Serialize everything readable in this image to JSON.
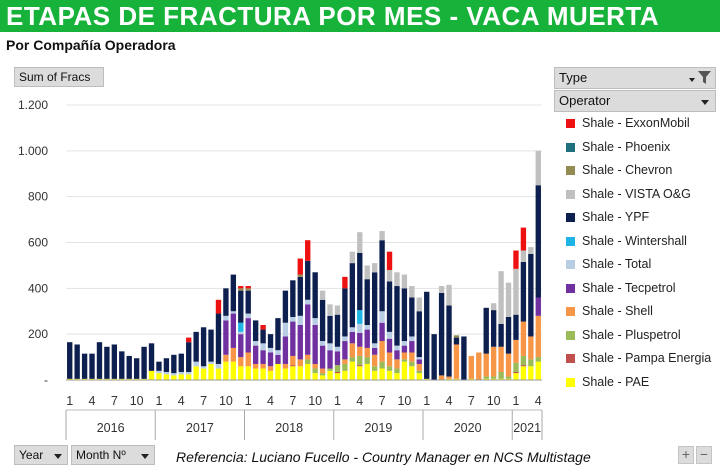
{
  "title": "ETAPAS DE FRACTURA POR MES -  VACA MUERTA",
  "subtitle": "Por Compañía Operadora",
  "value_field": "Sum of Fracs",
  "filter_field": "Type",
  "legend_field": "Operator",
  "row_fields": [
    "Year",
    "Month Nº"
  ],
  "reference": "Referencia: Luciano Fucello - Country Manager en NCS Multistage",
  "zoom_buttons": [
    "+",
    "−"
  ],
  "icons": [
    "filter-icon",
    "dropdown-arrow-icon"
  ],
  "chart_data": {
    "type": "bar",
    "stacked": true,
    "ylim": [
      0,
      1200
    ],
    "y_ticks": [
      "-",
      "200",
      "400",
      "600",
      "800",
      "1.000",
      "1.200"
    ],
    "y_tick_values": [
      0,
      200,
      400,
      600,
      800,
      1000,
      1200
    ],
    "x_month_labels": [
      "1",
      "4",
      "7",
      "10",
      "1",
      "4",
      "7",
      "10",
      "1",
      "4",
      "7",
      "10",
      "1",
      "4",
      "7",
      "10",
      "1",
      "4",
      "7",
      "10",
      "1",
      "4"
    ],
    "years": [
      {
        "label": "2016",
        "months": 12
      },
      {
        "label": "2017",
        "months": 12
      },
      {
        "label": "2018",
        "months": 12
      },
      {
        "label": "2019",
        "months": 12
      },
      {
        "label": "2020",
        "months": 12
      },
      {
        "label": "2021",
        "months": 4
      }
    ],
    "series": [
      {
        "name": "Shale - PAE",
        "color": "#ffff00",
        "values": [
          5,
          5,
          5,
          5,
          5,
          5,
          5,
          5,
          5,
          5,
          5,
          40,
          30,
          25,
          20,
          25,
          25,
          60,
          50,
          70,
          50,
          80,
          80,
          60,
          60,
          50,
          50,
          40,
          70,
          50,
          60,
          60,
          70,
          30,
          20,
          40,
          30,
          40,
          80,
          60,
          70,
          40,
          50,
          40,
          30,
          80,
          60,
          30,
          5,
          0,
          0,
          5,
          5,
          0,
          5,
          0,
          5,
          5,
          5,
          5,
          30,
          60,
          60,
          80
        ]
      },
      {
        "name": "Shale - Pampa Energia",
        "color": "#c0504d",
        "values": [
          0,
          0,
          0,
          0,
          0,
          0,
          0,
          0,
          0,
          0,
          0,
          0,
          0,
          0,
          0,
          0,
          0,
          0,
          0,
          0,
          0,
          0,
          0,
          0,
          0,
          0,
          0,
          0,
          0,
          0,
          5,
          0,
          0,
          0,
          0,
          0,
          5,
          0,
          0,
          5,
          0,
          0,
          0,
          0,
          0,
          0,
          0,
          0,
          0,
          0,
          0,
          0,
          0,
          0,
          0,
          0,
          0,
          0,
          0,
          0,
          5,
          5,
          0,
          0
        ]
      },
      {
        "name": "Shale - Pluspetrol",
        "color": "#9bbb59",
        "values": [
          0,
          0,
          0,
          0,
          0,
          0,
          0,
          0,
          0,
          0,
          0,
          0,
          0,
          0,
          0,
          0,
          0,
          0,
          0,
          0,
          0,
          0,
          0,
          0,
          0,
          0,
          0,
          0,
          0,
          0,
          0,
          0,
          20,
          20,
          10,
          10,
          30,
          30,
          20,
          40,
          30,
          20,
          30,
          20,
          20,
          10,
          20,
          10,
          0,
          0,
          0,
          0,
          0,
          0,
          0,
          0,
          10,
          10,
          30,
          10,
          40,
          40,
          30,
          20
        ]
      },
      {
        "name": "Shale - Shell",
        "color": "#f79646",
        "values": [
          0,
          0,
          0,
          0,
          0,
          0,
          0,
          0,
          0,
          0,
          0,
          0,
          0,
          0,
          0,
          0,
          0,
          0,
          0,
          0,
          0,
          30,
          60,
          40,
          60,
          20,
          20,
          20,
          0,
          20,
          40,
          30,
          20,
          20,
          20,
          0,
          0,
          20,
          60,
          40,
          40,
          50,
          90,
          60,
          40,
          30,
          40,
          30,
          0,
          0,
          20,
          10,
          150,
          0,
          100,
          120,
          100,
          130,
          110,
          100,
          100,
          150,
          100,
          180
        ]
      },
      {
        "name": "Shale - Tecpetrol",
        "color": "#7030a0",
        "values": [
          0,
          0,
          0,
          0,
          0,
          0,
          0,
          0,
          0,
          0,
          0,
          0,
          0,
          0,
          0,
          0,
          0,
          0,
          0,
          0,
          0,
          150,
          150,
          100,
          150,
          80,
          60,
          60,
          40,
          120,
          150,
          150,
          220,
          170,
          100,
          80,
          60,
          80,
          50,
          60,
          80,
          30,
          80,
          60,
          40,
          30,
          50,
          20,
          0,
          0,
          0,
          0,
          0,
          0,
          0,
          0,
          0,
          0,
          0,
          0,
          0,
          0,
          0,
          80
        ]
      },
      {
        "name": "Shale - Total",
        "color": "#b8cce4",
        "values": [
          0,
          0,
          0,
          0,
          0,
          0,
          0,
          0,
          0,
          0,
          0,
          0,
          10,
          10,
          10,
          10,
          10,
          20,
          10,
          10,
          20,
          20,
          10,
          10,
          20,
          20,
          30,
          20,
          20,
          60,
          20,
          40,
          20,
          30,
          20,
          30,
          20,
          20,
          20,
          40,
          20,
          20,
          50,
          30,
          20,
          20,
          20,
          10,
          0,
          0,
          0,
          0,
          0,
          0,
          0,
          0,
          0,
          0,
          0,
          0,
          0,
          0,
          0,
          0
        ]
      },
      {
        "name": "Shale - Wintershall",
        "color": "#1eb4e6",
        "values": [
          0,
          0,
          0,
          0,
          0,
          0,
          0,
          0,
          0,
          0,
          0,
          0,
          0,
          0,
          0,
          0,
          0,
          0,
          0,
          0,
          0,
          0,
          0,
          40,
          0,
          0,
          0,
          0,
          0,
          0,
          0,
          0,
          0,
          0,
          0,
          0,
          0,
          0,
          0,
          60,
          0,
          0,
          0,
          0,
          0,
          0,
          0,
          0,
          0,
          0,
          0,
          0,
          0,
          0,
          0,
          0,
          0,
          0,
          0,
          0,
          0,
          0,
          0,
          0
        ]
      },
      {
        "name": "Shale - YPF",
        "color": "#0d1f4f",
        "values": [
          160,
          150,
          110,
          110,
          160,
          140,
          150,
          120,
          100,
          90,
          140,
          120,
          40,
          60,
          80,
          80,
          130,
          130,
          170,
          140,
          220,
          120,
          160,
          140,
          100,
          90,
          60,
          60,
          140,
          140,
          160,
          170,
          170,
          200,
          180,
          120,
          140,
          210,
          280,
          250,
          200,
          310,
          310,
          220,
          260,
          230,
          170,
          200,
          380,
          200,
          360,
          310,
          30,
          190,
          0,
          0,
          200,
          160,
          100,
          160,
          110,
          260,
          360,
          490
        ]
      },
      {
        "name": "Shale - VISTA O&G",
        "color": "#c0c0c0",
        "values": [
          0,
          0,
          0,
          0,
          0,
          0,
          0,
          0,
          0,
          0,
          0,
          0,
          0,
          0,
          0,
          0,
          0,
          0,
          0,
          0,
          0,
          0,
          0,
          0,
          0,
          0,
          0,
          0,
          0,
          0,
          0,
          0,
          0,
          0,
          40,
          50,
          40,
          0,
          50,
          90,
          60,
          40,
          40,
          50,
          60,
          60,
          50,
          60,
          0,
          0,
          30,
          90,
          0,
          0,
          0,
          0,
          0,
          30,
          230,
          150,
          200,
          50,
          30,
          150
        ]
      },
      {
        "name": "Shale - Chevron",
        "color": "#948a54",
        "values": [
          0,
          0,
          0,
          0,
          0,
          0,
          0,
          0,
          0,
          0,
          0,
          0,
          0,
          0,
          0,
          0,
          0,
          0,
          0,
          0,
          0,
          0,
          0,
          10,
          10,
          0,
          0,
          0,
          0,
          0,
          0,
          10,
          0,
          0,
          0,
          0,
          0,
          0,
          0,
          0,
          0,
          0,
          0,
          0,
          0,
          0,
          0,
          0,
          0,
          0,
          0,
          0,
          10,
          0,
          0,
          0,
          0,
          0,
          0,
          0,
          0,
          0,
          0,
          0
        ]
      },
      {
        "name": "Shale - Phoenix",
        "color": "#1f6f7f",
        "values": [
          0,
          0,
          0,
          0,
          0,
          0,
          0,
          0,
          0,
          0,
          0,
          0,
          0,
          0,
          0,
          0,
          0,
          0,
          0,
          0,
          0,
          0,
          0,
          0,
          0,
          0,
          0,
          0,
          0,
          0,
          0,
          0,
          0,
          0,
          0,
          0,
          0,
          0,
          0,
          0,
          0,
          0,
          0,
          0,
          0,
          0,
          0,
          0,
          0,
          0,
          0,
          0,
          0,
          0,
          0,
          0,
          0,
          0,
          0,
          0,
          0,
          0,
          0,
          0
        ]
      },
      {
        "name": "Shale - ExxonMobil",
        "color": "#ee1111",
        "values": [
          0,
          0,
          0,
          0,
          0,
          0,
          0,
          0,
          0,
          0,
          0,
          0,
          0,
          0,
          0,
          0,
          20,
          0,
          0,
          0,
          60,
          0,
          0,
          10,
          10,
          0,
          20,
          0,
          0,
          0,
          0,
          70,
          90,
          0,
          0,
          0,
          0,
          50,
          0,
          0,
          0,
          0,
          0,
          80,
          0,
          0,
          0,
          0,
          0,
          0,
          0,
          0,
          0,
          0,
          0,
          0,
          0,
          0,
          0,
          0,
          80,
          100,
          0,
          0
        ]
      }
    ],
    "legend_order": [
      "Shale - ExxonMobil",
      "Shale - Phoenix",
      "Shale - Chevron",
      "Shale - VISTA O&G",
      "Shale - YPF",
      "Shale - Wintershall",
      "Shale - Total",
      "Shale - Tecpetrol",
      "Shale - Shell",
      "Shale - Pluspetrol",
      "Shale - Pampa Energia",
      "Shale - PAE"
    ],
    "legend_placement": "right",
    "grid": "horizontal"
  }
}
